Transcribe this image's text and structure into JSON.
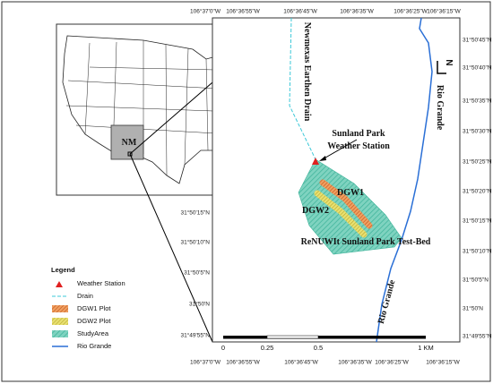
{
  "inset": {
    "state_label": "NM"
  },
  "map": {
    "labels": {
      "drain": "Newmexas Earthen Drain",
      "rio_grande_top": "Rio Grande",
      "weather_station": [
        "Sunland Park",
        "Weather Station"
      ],
      "dgw1": "DGW1",
      "dgw2": "DGW2",
      "test_bed": "ReNUWIt Sunland Park Test-Bed",
      "rio_grande_bottom": "Rio Grande"
    },
    "north": "N",
    "top_coords": [
      "106°37'0\"W",
      "106°36'55\"W",
      "106°36'45\"W",
      "106°36'35\"W",
      "106°36'25\"W",
      "106°36'15\"W"
    ],
    "bottom_coords": [
      "106°37'0\"W",
      "106°36'55\"W",
      "106°36'45\"W",
      "106°36'35\"W",
      "106°36'25\"W",
      "106°36'15\"W"
    ],
    "right_coords": [
      "31°50'45\"N",
      "31°50'40\"N",
      "31°50'35\"N",
      "31°50'30\"N",
      "31°50'25\"N",
      "31°50'20\"N",
      "31°50'15\"N",
      "31°50'10\"N",
      "31°50'5\"N",
      "31°50'N",
      "31°49'55\"N"
    ],
    "left_coords": [
      "31°50'15\"N",
      "31°50'10\"N",
      "31°50'5\"N",
      "31°50'N",
      "31°49'55\"N"
    ],
    "scale_bar": [
      "0",
      "0.25",
      "0.5",
      "1 KM"
    ]
  },
  "legend": {
    "title": "Legend",
    "items": [
      "Weather Station",
      "Drain",
      "DGW1 Plot",
      "DGW2 Plot",
      "StudyArea",
      "Rio Grande"
    ]
  }
}
